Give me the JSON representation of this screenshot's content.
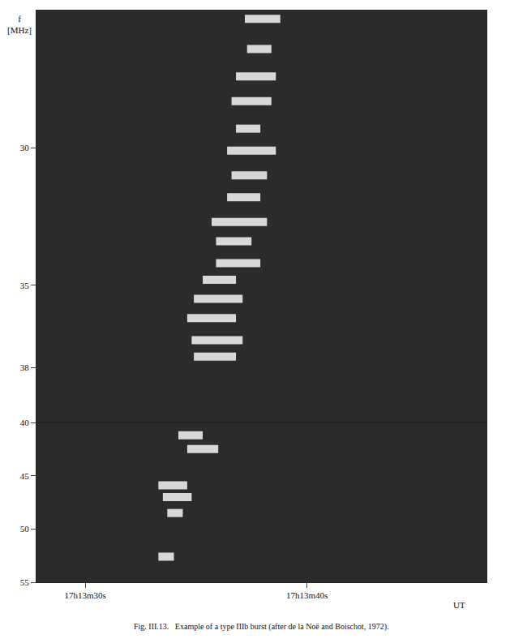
{
  "chart_data": [
    {
      "type": "scatter",
      "y_label": "f [MHz]",
      "x": [
        38.0,
        37.85,
        37.7,
        37.5,
        37.35,
        37.5,
        37.4,
        37.15,
        36.95,
        36.7,
        36.9,
        36.05,
        36.0,
        35.7,
        35.95,
        35.85
      ],
      "x_error": [
        0.8,
        0.55,
        0.9,
        0.9,
        0.55,
        1.1,
        0.8,
        0.75,
        1.25,
        0.8,
        1.0,
        0.75,
        1.1,
        1.1,
        1.15,
        0.95
      ],
      "values": [
        25.3,
        26.4,
        27.4,
        28.3,
        29.3,
        30.1,
        31.0,
        31.8,
        32.7,
        33.4,
        34.2,
        34.8,
        35.5,
        36.2,
        37.0,
        37.6
      ],
      "xlim": [
        27.8,
        48.1
      ],
      "ylim": [
        25,
        40
      ],
      "yticks": [
        30,
        35,
        38,
        40
      ],
      "color": "#ffffff",
      "marker": "circle",
      "grid": false,
      "tick_labels": "y"
    },
    {
      "type": "scatter",
      "title": "Fig. III.13.   Example of a type IIIb burst (after de la Noë and Boischot, 1972).",
      "x_label": "UT",
      "x": [
        34.75,
        35.3,
        33.95,
        34.15,
        34.05,
        33.65
      ],
      "x_error": [
        0.55,
        0.7,
        0.65,
        0.65,
        0.35,
        0.35
      ],
      "values": [
        41.2,
        42.5,
        45.9,
        47.0,
        48.5,
        52.6
      ],
      "xlim": [
        27.8,
        48.1
      ],
      "xticks": [
        {
          "value": 30,
          "label": "17h13m30s"
        },
        {
          "value": 40,
          "label": "17h13m40s"
        }
      ],
      "ylim": [
        40,
        55
      ],
      "yticks": [
        45,
        50,
        55
      ],
      "color": "#ffffff",
      "marker": "circle",
      "grid": false
    }
  ]
}
